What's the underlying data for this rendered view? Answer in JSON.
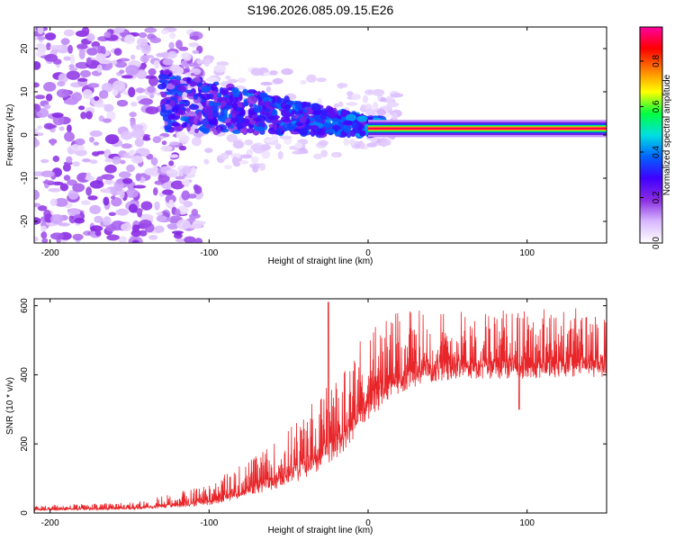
{
  "chart_data": [
    {
      "type": "heatmap",
      "title": "S196.2026.085.09.15.E26",
      "xlabel": "Height of straight line (km)",
      "ylabel": "Frequency (Hz)",
      "xlim": [
        -210,
        150
      ],
      "ylim": [
        -25,
        25
      ],
      "x_ticks": [
        -200,
        -100,
        0,
        100
      ],
      "y_ticks": [
        -20,
        -10,
        0,
        10,
        20
      ],
      "colorbar": {
        "label": "Normalized spectral amplitude",
        "range": [
          0,
          0.95
        ],
        "ticks": [
          0.0,
          0.2,
          0.4,
          0.6,
          0.8
        ],
        "colors": [
          "#ffffff",
          "#d8b8ff",
          "#8a2be2",
          "#3f00ff",
          "#0064ff",
          "#00e0e0",
          "#00ff40",
          "#ffff00",
          "#ff8000",
          "#ff0000",
          "#ff00a0"
        ]
      },
      "features": {
        "noise_region_x": [
          -210,
          -130
        ],
        "diffuse_band_x": [
          -130,
          0
        ],
        "diffuse_band_center_freq": [
          8,
          2
        ],
        "diffuse_band_half_width": [
          7,
          2
        ],
        "steady_line_x": [
          0,
          150
        ],
        "steady_line_freq": 1.5,
        "steady_line_amplitude": 0.9
      }
    },
    {
      "type": "line",
      "xlabel": "Height of straight line (km)",
      "ylabel": "SNR (10 * v/v)",
      "xlim": [
        -210,
        150
      ],
      "ylim": [
        0,
        620
      ],
      "x_ticks": [
        -200,
        -100,
        0,
        100
      ],
      "y_ticks": [
        0,
        200,
        400,
        600
      ],
      "series": [
        {
          "name": "SNR",
          "color": "#e8262a",
          "profile_x": [
            -210,
            -150,
            -120,
            -100,
            -80,
            -60,
            -40,
            -20,
            -10,
            0,
            10,
            20,
            30,
            40,
            60,
            80,
            100,
            120,
            150
          ],
          "profile_baseline": [
            8,
            12,
            20,
            30,
            50,
            80,
            120,
            180,
            240,
            300,
            340,
            370,
            390,
            400,
            410,
            410,
            410,
            415,
            415
          ],
          "profile_spike_amplitude": [
            15,
            18,
            40,
            60,
            90,
            120,
            180,
            220,
            240,
            250,
            230,
            210,
            200,
            190,
            180,
            180,
            180,
            180,
            180
          ],
          "peak_spike": {
            "x": -25,
            "y": 610
          },
          "dip": {
            "x": 95,
            "y": 300
          }
        }
      ]
    }
  ]
}
